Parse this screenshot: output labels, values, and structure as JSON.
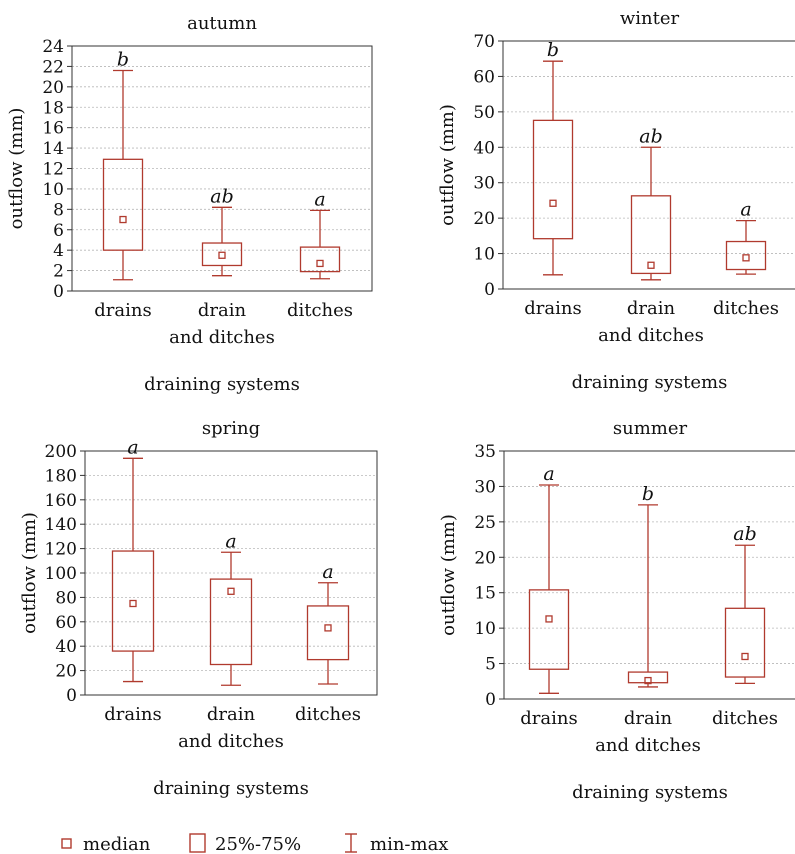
{
  "colors": {
    "box": "#b03a2e",
    "grid": "#b8b8b8",
    "frame": "#333333"
  },
  "legend": {
    "median": "median",
    "box": "25%-75%",
    "whisker": "min-max"
  },
  "chart_data": [
    {
      "type": "boxplot",
      "title": "autumn",
      "xlabel": "draining systems",
      "ylabel": "outflow (mm)",
      "ylim": [
        0,
        24
      ],
      "yticks": [
        0,
        2,
        4,
        6,
        8,
        10,
        12,
        14,
        16,
        18,
        20,
        22,
        24
      ],
      "categories": [
        "drains",
        "drain\nand ditches",
        "ditches"
      ],
      "boxes": [
        {
          "min": 1.1,
          "q1": 4.0,
          "median": 7.0,
          "q3": 12.9,
          "max": 21.6,
          "label": "b"
        },
        {
          "min": 1.5,
          "q1": 2.5,
          "median": 3.5,
          "q3": 4.7,
          "max": 8.2,
          "label": "ab"
        },
        {
          "min": 1.2,
          "q1": 1.9,
          "median": 2.7,
          "q3": 4.3,
          "max": 7.9,
          "label": "a"
        }
      ]
    },
    {
      "type": "boxplot",
      "title": "winter",
      "xlabel": "draining systems",
      "ylabel": "outflow (mm)",
      "ylim": [
        0,
        70
      ],
      "yticks": [
        0,
        10,
        20,
        30,
        40,
        50,
        60,
        70
      ],
      "categories": [
        "drains",
        "drain\nand ditches",
        "ditches"
      ],
      "boxes": [
        {
          "min": 4.0,
          "q1": 14.2,
          "median": 24.2,
          "q3": 47.6,
          "max": 64.3,
          "label": "b"
        },
        {
          "min": 2.6,
          "q1": 4.4,
          "median": 6.7,
          "q3": 26.3,
          "max": 40.0,
          "label": "ab"
        },
        {
          "min": 4.2,
          "q1": 5.5,
          "median": 8.8,
          "q3": 13.4,
          "max": 19.3,
          "label": "a"
        }
      ]
    },
    {
      "type": "boxplot",
      "title": "spring",
      "xlabel": "draining systems",
      "ylabel": "outflow (mm)",
      "ylim": [
        0,
        200
      ],
      "yticks": [
        0,
        20,
        40,
        60,
        80,
        100,
        120,
        140,
        160,
        180,
        200
      ],
      "categories": [
        "drains",
        "drain\nand ditches",
        "ditches"
      ],
      "boxes": [
        {
          "min": 11,
          "q1": 36,
          "median": 75,
          "q3": 118,
          "max": 194,
          "label": "a"
        },
        {
          "min": 8,
          "q1": 25,
          "median": 85,
          "q3": 95,
          "max": 117,
          "label": "a"
        },
        {
          "min": 9,
          "q1": 29,
          "median": 55,
          "q3": 73,
          "max": 92,
          "label": "a"
        }
      ]
    },
    {
      "type": "boxplot",
      "title": "summer",
      "xlabel": "draining systems",
      "ylabel": "outflow (mm)",
      "ylim": [
        0,
        35
      ],
      "yticks": [
        0,
        5,
        10,
        15,
        20,
        25,
        30,
        35
      ],
      "categories": [
        "drains",
        "drain\nand ditches",
        "ditches"
      ],
      "boxes": [
        {
          "min": 0.8,
          "q1": 4.2,
          "median": 11.3,
          "q3": 15.4,
          "max": 30.2,
          "label": "a"
        },
        {
          "min": 1.7,
          "q1": 2.3,
          "median": 2.6,
          "q3": 3.8,
          "max": 27.4,
          "label": "b"
        },
        {
          "min": 2.2,
          "q1": 3.1,
          "median": 6.0,
          "q3": 12.8,
          "max": 21.7,
          "label": "ab"
        }
      ]
    }
  ]
}
